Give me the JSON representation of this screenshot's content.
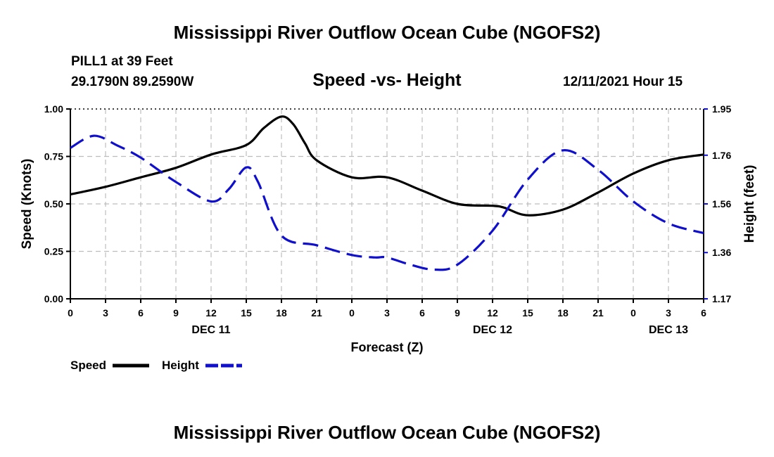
{
  "page": {
    "main_title": "Mississippi River Outflow Ocean Cube (NGOFS2)",
    "footer_title": "Mississippi River Outflow Ocean Cube (NGOFS2)",
    "station_label": "PILL1 at 39 Feet",
    "coords_label": "29.1790N  89.2590W",
    "timestamp": "12/11/2021 Hour 15"
  },
  "chart_data": {
    "type": "line",
    "title": "Speed -vs- Height",
    "xlabel": "Forecast (Z)",
    "ylabel": "Speed (Knots)",
    "y2label": "Height (feet)",
    "xlim": [
      0,
      54
    ],
    "ylim": [
      0,
      1.0
    ],
    "y2lim": [
      1.17,
      1.95
    ],
    "grid": true,
    "x_tick_values": [
      0,
      3,
      6,
      9,
      12,
      15,
      18,
      21,
      24,
      27,
      30,
      33,
      36,
      39,
      42,
      45,
      48,
      51,
      54
    ],
    "x_tick_labels": [
      "0",
      "3",
      "6",
      "9",
      "12",
      "15",
      "18",
      "21",
      "0",
      "3",
      "6",
      "9",
      "12",
      "15",
      "18",
      "21",
      "0",
      "3",
      "6"
    ],
    "day_labels": [
      {
        "x": 12,
        "label": "DEC 11"
      },
      {
        "x": 36,
        "label": "DEC 12"
      },
      {
        "x": 51,
        "label": "DEC 13"
      }
    ],
    "y_ticks": [
      0.0,
      0.25,
      0.5,
      0.75,
      1.0
    ],
    "y_tick_labels": [
      "0.00",
      "0.25",
      "0.50",
      "0.75",
      "1.00"
    ],
    "y2_ticks": [
      1.17,
      1.36,
      1.56,
      1.76,
      1.95
    ],
    "y2_tick_labels": [
      "1.17",
      "1.36",
      "1.56",
      "1.76",
      "1.95"
    ],
    "series": [
      {
        "name": "Speed",
        "axis": "left",
        "color": "#000000",
        "dash": "solid",
        "x": [
          0,
          3,
          6,
          9,
          12,
          15,
          16.5,
          18,
          19,
          20,
          21,
          24,
          27,
          30,
          33,
          36,
          37,
          39,
          42,
          45,
          48,
          51,
          54
        ],
        "values": [
          0.55,
          0.59,
          0.64,
          0.69,
          0.76,
          0.81,
          0.9,
          0.96,
          0.92,
          0.82,
          0.73,
          0.64,
          0.64,
          0.57,
          0.5,
          0.49,
          0.48,
          0.44,
          0.47,
          0.56,
          0.66,
          0.73,
          0.76
        ]
      },
      {
        "name": "Height",
        "axis": "right",
        "color": "#1010cc",
        "dash": "dashed",
        "x": [
          0,
          2,
          4,
          6,
          9,
          12,
          13.5,
          15,
          16,
          18,
          21,
          24,
          26,
          27,
          29,
          31,
          33,
          36,
          39,
          42,
          45,
          48,
          51,
          54
        ],
        "values": [
          1.79,
          1.84,
          1.8,
          1.75,
          1.65,
          1.57,
          1.62,
          1.71,
          1.65,
          1.43,
          1.39,
          1.35,
          1.34,
          1.34,
          1.31,
          1.29,
          1.31,
          1.45,
          1.66,
          1.78,
          1.7,
          1.57,
          1.48,
          1.44
        ]
      }
    ],
    "legend": [
      {
        "label": "Speed",
        "color": "#000000",
        "dash": "solid"
      },
      {
        "label": "Height",
        "color": "#1010cc",
        "dash": "dashed"
      }
    ],
    "legend_position": "bottom-left"
  }
}
